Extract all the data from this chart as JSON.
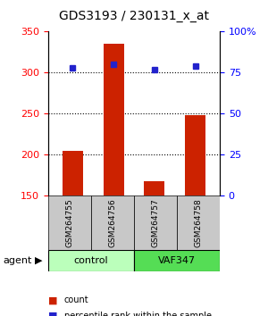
{
  "title": "GDS3193 / 230131_x_at",
  "samples": [
    "GSM264755",
    "GSM264756",
    "GSM264757",
    "GSM264758"
  ],
  "groups": [
    "control",
    "control",
    "VAF347",
    "VAF347"
  ],
  "count_values": [
    205,
    335,
    168,
    248
  ],
  "percentile_values": [
    78,
    80,
    77,
    79
  ],
  "count_baseline": 150,
  "ylim_left": [
    150,
    350
  ],
  "ylim_right": [
    0,
    100
  ],
  "yticks_left": [
    150,
    200,
    250,
    300,
    350
  ],
  "yticks_right": [
    0,
    25,
    50,
    75,
    100
  ],
  "bar_color": "#cc2200",
  "dot_color": "#2222cc",
  "group_colors": {
    "control": "#aaffaa",
    "VAF347": "#44ee44"
  },
  "control_color": "#bbffbb",
  "vaf_color": "#55dd55",
  "legend_count_color": "#cc2200",
  "legend_pct_color": "#2222cc",
  "bar_width": 0.5,
  "figsize": [
    3.0,
    3.54
  ],
  "dpi": 100
}
